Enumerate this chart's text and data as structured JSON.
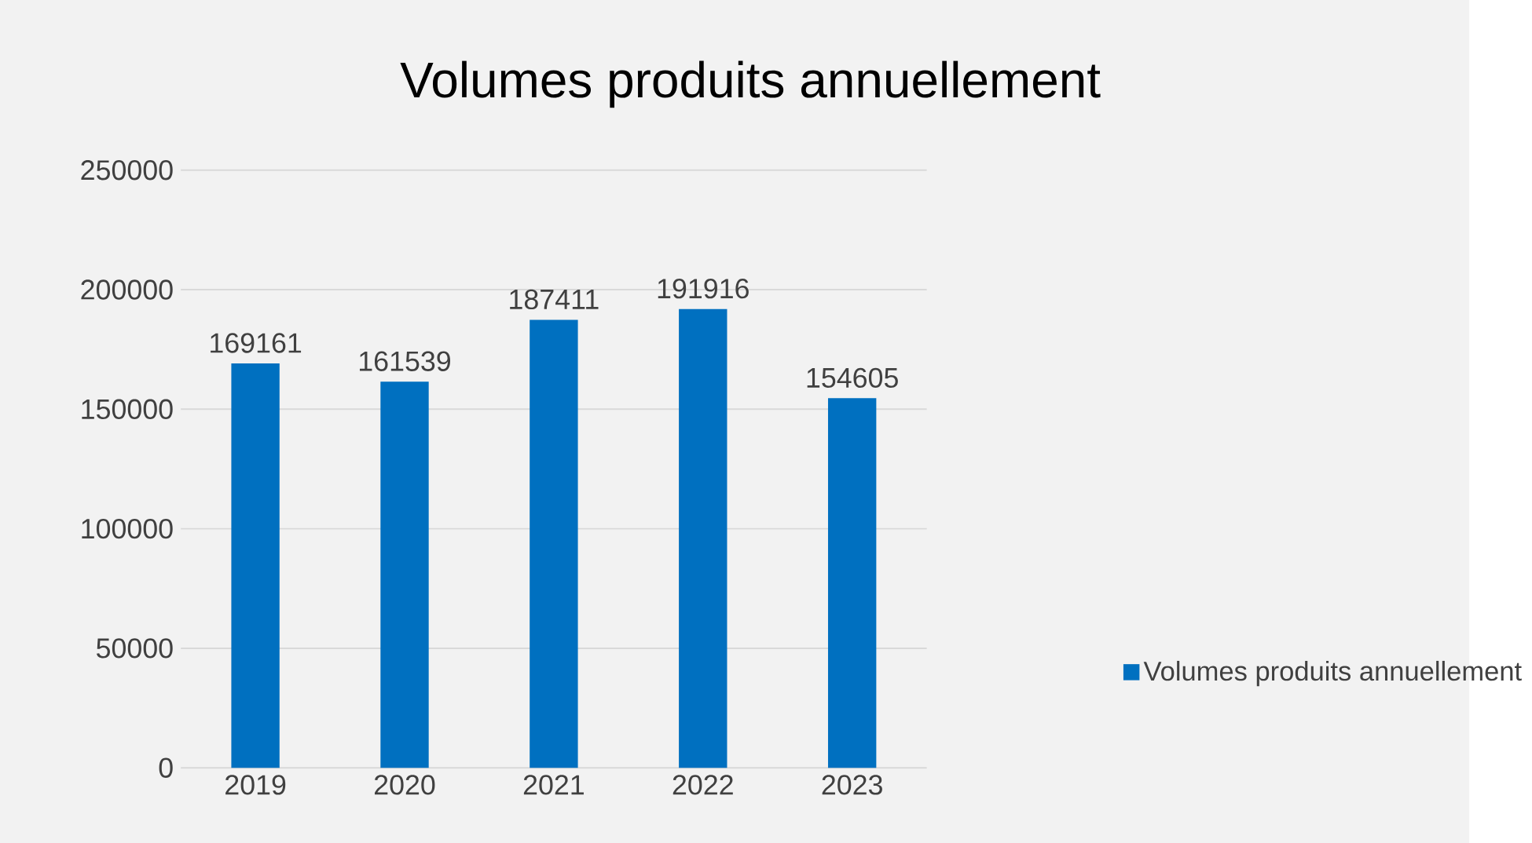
{
  "chart_data": {
    "type": "bar",
    "title": "Volumes produits annuellement",
    "categories": [
      "2019",
      "2020",
      "2021",
      "2022",
      "2023"
    ],
    "series": [
      {
        "name": "Volumes produits annuellement",
        "color": "#0070c0",
        "values": [
          169161,
          161539,
          187411,
          191916,
          154605
        ]
      }
    ],
    "ylim": [
      0,
      250000
    ],
    "yticks": [
      0,
      50000,
      100000,
      150000,
      200000,
      250000
    ],
    "grid": "y",
    "legend": "right",
    "data_labels": true
  }
}
